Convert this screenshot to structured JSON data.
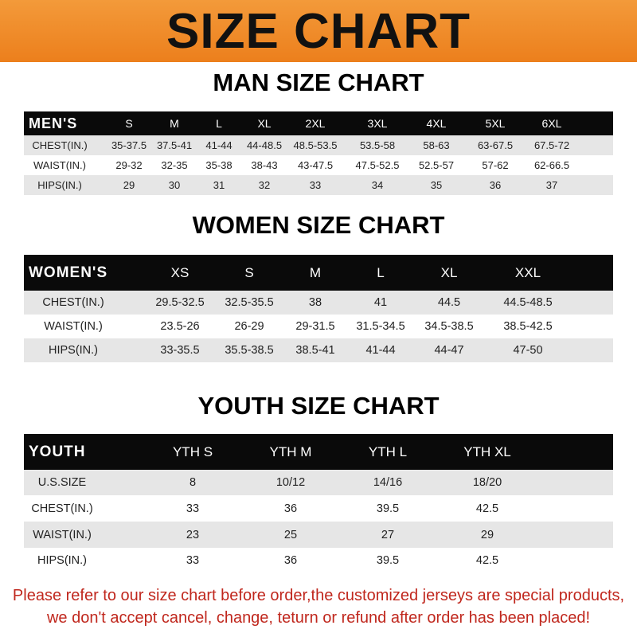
{
  "banner_title": "SIZE CHART",
  "men": {
    "title": "MAN SIZE CHART",
    "header": "MEN'S",
    "sizes": [
      "S",
      "M",
      "L",
      "XL",
      "2XL",
      "3XL",
      "4XL",
      "5XL",
      "6XL"
    ],
    "rows": [
      {
        "label": "CHEST(IN.)",
        "values": [
          "35-37.5",
          "37.5-41",
          "41-44",
          "44-48.5",
          "48.5-53.5",
          "53.5-58",
          "58-63",
          "63-67.5",
          "67.5-72"
        ]
      },
      {
        "label": "WAIST(IN.)",
        "values": [
          "29-32",
          "32-35",
          "35-38",
          "38-43",
          "43-47.5",
          "47.5-52.5",
          "52.5-57",
          "57-62",
          "62-66.5"
        ]
      },
      {
        "label": "HIPS(IN.)",
        "values": [
          "29",
          "30",
          "31",
          "32",
          "33",
          "34",
          "35",
          "36",
          "37"
        ]
      }
    ]
  },
  "women": {
    "title": "WOMEN SIZE CHART",
    "header": "WOMEN'S",
    "sizes": [
      "XS",
      "S",
      "M",
      "L",
      "XL",
      "XXL"
    ],
    "rows": [
      {
        "label": "CHEST(IN.)",
        "values": [
          "29.5-32.5",
          "32.5-35.5",
          "38",
          "41",
          "44.5",
          "44.5-48.5"
        ]
      },
      {
        "label": "WAIST(IN.)",
        "values": [
          "23.5-26",
          "26-29",
          "29-31.5",
          "31.5-34.5",
          "34.5-38.5",
          "38.5-42.5"
        ]
      },
      {
        "label": "HIPS(IN.)",
        "values": [
          "33-35.5",
          "35.5-38.5",
          "38.5-41",
          "41-44",
          "44-47",
          "47-50"
        ]
      }
    ]
  },
  "youth": {
    "title": "YOUTH SIZE CHART",
    "header": "YOUTH",
    "sizes": [
      "YTH S",
      "YTH M",
      "YTH L",
      "YTH XL"
    ],
    "rows": [
      {
        "label": "U.S.SIZE",
        "values": [
          "8",
          "10/12",
          "14/16",
          "18/20"
        ]
      },
      {
        "label": "CHEST(IN.)",
        "values": [
          "33",
          "36",
          "39.5",
          "42.5"
        ]
      },
      {
        "label": "WAIST(IN.)",
        "values": [
          "23",
          "25",
          "27",
          "29"
        ]
      },
      {
        "label": "HIPS(IN.)",
        "values": [
          "33",
          "36",
          "39.5",
          "42.5"
        ]
      }
    ]
  },
  "footer": {
    "line1": "Please refer to our size chart before order,the customized jerseys are special products,",
    "line2": "we don't accept cancel, change, teturn or refund after order has been placed!"
  },
  "colors": {
    "banner": "#ec7f1c",
    "header_row": "#0a0a0a",
    "stripe": "#e6e6e6",
    "footer_text": "#c0271d"
  }
}
